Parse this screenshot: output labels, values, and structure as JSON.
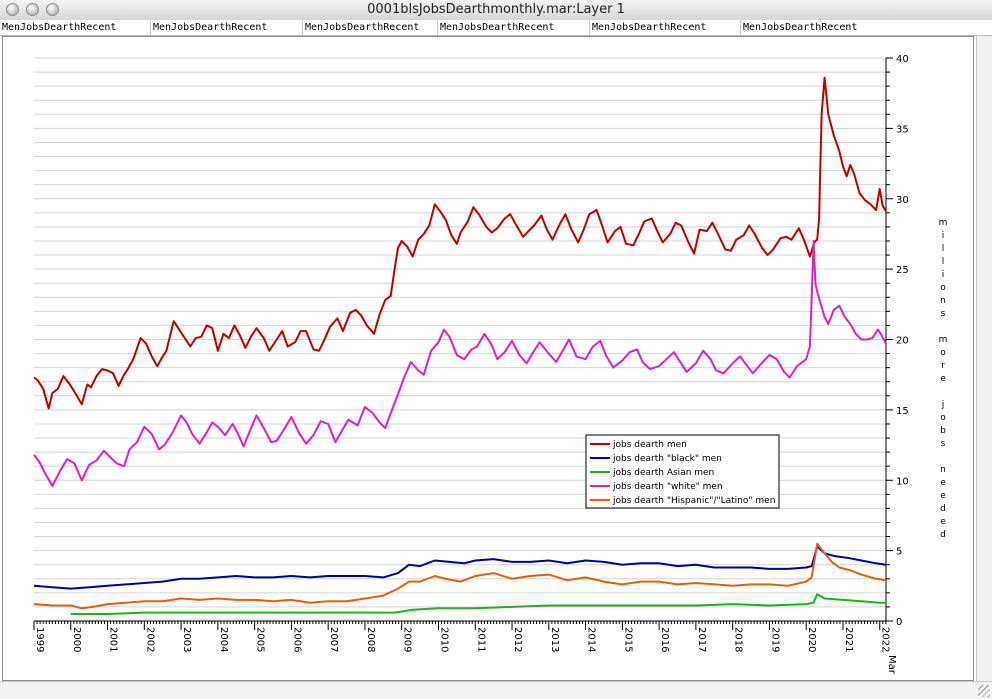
{
  "window": {
    "title": "0001blsJobsDearthmonthly.mar:Layer 1",
    "tabs": [
      "MenJobsDearthRecent",
      "MenJobsDearthRecent",
      "MenJobsDearthRecent",
      "MenJobsDearthRecent",
      "MenJobsDearthRecent",
      "MenJobsDearthRecent"
    ]
  },
  "chart_data": {
    "type": "line",
    "title": "",
    "ylabel": "millions more jobs needed",
    "xlabel": "",
    "ylim": [
      0,
      40
    ],
    "xlim": [
      1999.0,
      2022.17
    ],
    "yticks": [
      0,
      5,
      10,
      15,
      20,
      25,
      30,
      35,
      40
    ],
    "x_tick_labels": [
      "1999",
      "2000",
      "2001",
      "2002",
      "2003",
      "2004",
      "2005",
      "2006",
      "2007",
      "2008",
      "2009",
      "2010",
      "2011",
      "2012",
      "2013",
      "2014",
      "2015",
      "2016",
      "2017",
      "2018",
      "2019",
      "2020",
      "2021",
      "2022",
      "Mar"
    ],
    "grid": true,
    "legend_position": "lower-right",
    "series": [
      {
        "name": "jobs dearth men",
        "color": "#c00000",
        "x": [
          1999.0,
          1999.1,
          1999.25,
          1999.4,
          1999.5,
          1999.65,
          1999.8,
          1999.95,
          2000.1,
          2000.3,
          2000.45,
          2000.55,
          2000.7,
          2000.85,
          2001.0,
          2001.15,
          2001.3,
          2001.45,
          2001.55,
          2001.7,
          2001.9,
          2002.05,
          2002.2,
          2002.35,
          2002.5,
          2002.6,
          2002.8,
          2002.95,
          2003.05,
          2003.25,
          2003.4,
          2003.55,
          2003.7,
          2003.85,
          2004.0,
          2004.15,
          2004.3,
          2004.45,
          2004.6,
          2004.75,
          2004.9,
          2005.05,
          2005.25,
          2005.4,
          2005.6,
          2005.75,
          2005.9,
          2006.1,
          2006.25,
          2006.4,
          2006.6,
          2006.75,
          2006.9,
          2007.05,
          2007.25,
          2007.4,
          2007.6,
          2007.75,
          2007.9,
          2008.05,
          2008.25,
          2008.4,
          2008.55,
          2008.7,
          2008.8,
          2008.9,
          2009.0,
          2009.15,
          2009.3,
          2009.45,
          2009.6,
          2009.75,
          2009.9,
          2010.05,
          2010.2,
          2010.35,
          2010.5,
          2010.6,
          2010.8,
          2010.95,
          2011.1,
          2011.3,
          2011.45,
          2011.6,
          2011.8,
          2011.95,
          2012.1,
          2012.3,
          2012.45,
          2012.6,
          2012.8,
          2012.95,
          2013.1,
          2013.3,
          2013.45,
          2013.6,
          2013.8,
          2013.95,
          2014.1,
          2014.3,
          2014.45,
          2014.6,
          2014.8,
          2014.95,
          2015.1,
          2015.3,
          2015.45,
          2015.6,
          2015.8,
          2015.95,
          2016.1,
          2016.3,
          2016.45,
          2016.6,
          2016.8,
          2016.95,
          2017.1,
          2017.3,
          2017.45,
          2017.6,
          2017.8,
          2017.95,
          2018.1,
          2018.3,
          2018.45,
          2018.6,
          2018.8,
          2018.95,
          2019.1,
          2019.3,
          2019.45,
          2019.6,
          2019.8,
          2019.95,
          2020.1,
          2020.15,
          2020.2,
          2020.25,
          2020.3,
          2020.35,
          2020.42,
          2020.5,
          2020.6,
          2020.75,
          2020.9,
          2021.0,
          2021.1,
          2021.2,
          2021.3,
          2021.45,
          2021.6,
          2021.75,
          2021.9,
          2022.0,
          2022.08,
          2022.17
        ],
        "values": [
          17.3,
          17.1,
          16.5,
          15.1,
          16.2,
          16.5,
          17.4,
          16.9,
          16.3,
          15.4,
          16.8,
          16.6,
          17.4,
          17.9,
          17.8,
          17.6,
          16.7,
          17.5,
          17.9,
          18.6,
          20.1,
          19.7,
          18.8,
          18.1,
          18.8,
          19.2,
          21.3,
          20.7,
          20.3,
          19.5,
          20.1,
          20.2,
          21.0,
          20.8,
          19.2,
          20.4,
          20.1,
          21.0,
          20.3,
          19.4,
          20.2,
          20.8,
          20.1,
          19.2,
          20.0,
          20.6,
          19.5,
          19.8,
          20.6,
          20.6,
          19.3,
          19.2,
          20.0,
          20.9,
          21.5,
          20.6,
          21.9,
          22.1,
          21.7,
          21.0,
          20.4,
          21.8,
          22.8,
          23.1,
          24.9,
          26.5,
          27.0,
          26.6,
          25.9,
          27.1,
          27.5,
          28.1,
          29.6,
          29.1,
          28.5,
          27.4,
          26.8,
          27.6,
          28.4,
          29.4,
          28.9,
          28.0,
          27.6,
          27.9,
          28.6,
          28.9,
          28.2,
          27.3,
          27.7,
          28.1,
          28.8,
          27.8,
          27.1,
          28.2,
          28.9,
          27.9,
          26.9,
          27.8,
          28.9,
          29.2,
          28.1,
          26.9,
          27.7,
          28.0,
          26.8,
          26.7,
          27.5,
          28.4,
          28.6,
          27.7,
          26.9,
          27.5,
          28.3,
          28.1,
          26.9,
          26.1,
          27.8,
          27.7,
          28.3,
          27.5,
          26.4,
          26.3,
          27.1,
          27.4,
          28.1,
          27.5,
          26.5,
          26.0,
          26.4,
          27.2,
          27.3,
          27.1,
          27.9,
          27.0,
          25.9,
          26.3,
          26.8,
          27.0,
          27.1,
          28.6,
          36.0,
          38.6,
          36.0,
          34.5,
          33.4,
          32.3,
          31.6,
          32.4,
          31.8,
          30.4,
          29.9,
          29.6,
          29.2,
          30.7,
          29.5,
          29.1
        ]
      },
      {
        "name": "jobs dearth \"black\" men",
        "color": "#0000a0",
        "x": [
          1999.0,
          1999.5,
          2000.0,
          2000.5,
          2001.0,
          2001.5,
          2002.0,
          2002.5,
          2003.0,
          2003.5,
          2004.0,
          2004.5,
          2005.0,
          2005.5,
          2006.0,
          2006.5,
          2007.0,
          2007.5,
          2008.0,
          2008.5,
          2008.9,
          2009.2,
          2009.5,
          2009.9,
          2010.3,
          2010.7,
          2011.0,
          2011.5,
          2012.0,
          2012.5,
          2013.0,
          2013.5,
          2014.0,
          2014.5,
          2015.0,
          2015.5,
          2016.0,
          2016.5,
          2017.0,
          2017.5,
          2018.0,
          2018.5,
          2019.0,
          2019.5,
          2020.0,
          2020.15,
          2020.3,
          2020.5,
          2020.8,
          2021.1,
          2021.5,
          2021.9,
          2022.17
        ],
        "values": [
          2.5,
          2.4,
          2.3,
          2.4,
          2.5,
          2.6,
          2.7,
          2.8,
          3.0,
          3.0,
          3.1,
          3.2,
          3.1,
          3.1,
          3.2,
          3.1,
          3.2,
          3.2,
          3.2,
          3.1,
          3.4,
          4.0,
          3.9,
          4.3,
          4.2,
          4.1,
          4.3,
          4.4,
          4.2,
          4.2,
          4.3,
          4.1,
          4.3,
          4.2,
          4.0,
          4.1,
          4.1,
          3.9,
          4.0,
          3.8,
          3.8,
          3.8,
          3.7,
          3.7,
          3.8,
          3.9,
          5.3,
          4.8,
          4.6,
          4.5,
          4.3,
          4.1,
          4.0
        ]
      },
      {
        "name": "jobs dearth Asian men",
        "color": "#20b020",
        "x": [
          2000.0,
          2001.0,
          2002.0,
          2003.0,
          2004.0,
          2005.0,
          2006.0,
          2007.0,
          2008.0,
          2008.8,
          2009.3,
          2010.0,
          2011.0,
          2012.0,
          2013.0,
          2014.0,
          2015.0,
          2016.0,
          2017.0,
          2018.0,
          2019.0,
          2020.0,
          2020.2,
          2020.3,
          2020.5,
          2021.0,
          2021.5,
          2022.0,
          2022.17
        ],
        "values": [
          0.5,
          0.5,
          0.6,
          0.6,
          0.6,
          0.6,
          0.6,
          0.6,
          0.6,
          0.6,
          0.8,
          0.9,
          0.9,
          1.0,
          1.1,
          1.1,
          1.1,
          1.1,
          1.1,
          1.2,
          1.1,
          1.2,
          1.3,
          1.9,
          1.6,
          1.5,
          1.4,
          1.3,
          1.3
        ]
      },
      {
        "name": "jobs dearth \"white\" men",
        "color": "#e020c0",
        "x": [
          1999.0,
          1999.15,
          1999.3,
          1999.5,
          1999.7,
          1999.9,
          2000.1,
          2000.3,
          2000.5,
          2000.7,
          2000.9,
          2001.05,
          2001.25,
          2001.45,
          2001.6,
          2001.8,
          2002.0,
          2002.2,
          2002.4,
          2002.55,
          2002.75,
          2003.0,
          2003.15,
          2003.3,
          2003.5,
          2003.7,
          2003.85,
          2004.0,
          2004.2,
          2004.4,
          2004.55,
          2004.7,
          2004.9,
          2005.05,
          2005.25,
          2005.45,
          2005.6,
          2005.8,
          2006.0,
          2006.2,
          2006.4,
          2006.6,
          2006.8,
          2007.0,
          2007.2,
          2007.35,
          2007.55,
          2007.8,
          2008.0,
          2008.2,
          2008.4,
          2008.55,
          2008.75,
          2008.9,
          2009.05,
          2009.25,
          2009.45,
          2009.6,
          2009.8,
          2010.0,
          2010.15,
          2010.3,
          2010.5,
          2010.7,
          2010.9,
          2011.05,
          2011.25,
          2011.45,
          2011.6,
          2011.8,
          2012.0,
          2012.2,
          2012.4,
          2012.55,
          2012.75,
          2013.0,
          2013.2,
          2013.4,
          2013.55,
          2013.75,
          2014.0,
          2014.2,
          2014.4,
          2014.55,
          2014.75,
          2015.0,
          2015.2,
          2015.4,
          2015.55,
          2015.75,
          2016.0,
          2016.2,
          2016.4,
          2016.55,
          2016.75,
          2017.0,
          2017.2,
          2017.4,
          2017.55,
          2017.75,
          2018.0,
          2018.2,
          2018.4,
          2018.55,
          2018.75,
          2019.0,
          2019.2,
          2019.4,
          2019.55,
          2019.75,
          2020.0,
          2020.1,
          2020.15,
          2020.2,
          2020.25,
          2020.3,
          2020.4,
          2020.5,
          2020.6,
          2020.75,
          2020.9,
          2021.05,
          2021.2,
          2021.35,
          2021.5,
          2021.65,
          2021.8,
          2021.95,
          2022.05,
          2022.17
        ],
        "values": [
          11.8,
          11.3,
          10.5,
          9.6,
          10.6,
          11.5,
          11.2,
          10.0,
          11.1,
          11.4,
          12.1,
          11.7,
          11.2,
          11.0,
          12.2,
          12.7,
          13.8,
          13.3,
          12.2,
          12.5,
          13.3,
          14.6,
          14.1,
          13.3,
          12.6,
          13.4,
          14.1,
          13.8,
          13.2,
          14.0,
          13.3,
          12.4,
          13.7,
          14.6,
          13.7,
          12.7,
          12.8,
          13.6,
          14.5,
          13.4,
          12.6,
          13.2,
          14.2,
          14.0,
          12.7,
          13.4,
          14.3,
          13.9,
          15.2,
          14.8,
          14.1,
          13.7,
          15.1,
          16.1,
          17.2,
          18.4,
          17.8,
          17.5,
          19.2,
          19.8,
          20.7,
          20.2,
          18.9,
          18.6,
          19.3,
          19.5,
          20.4,
          19.6,
          18.6,
          19.1,
          19.9,
          18.9,
          18.3,
          19.0,
          19.8,
          19.0,
          18.4,
          19.3,
          20.0,
          18.8,
          18.6,
          19.5,
          19.9,
          18.9,
          18.0,
          18.5,
          19.1,
          19.3,
          18.4,
          17.9,
          18.1,
          18.6,
          19.1,
          18.5,
          17.7,
          18.3,
          19.2,
          18.6,
          17.8,
          17.6,
          18.3,
          18.8,
          18.1,
          17.6,
          18.2,
          18.9,
          18.6,
          17.7,
          17.3,
          18.1,
          18.6,
          19.5,
          23.0,
          27.0,
          24.0,
          23.4,
          22.5,
          21.6,
          21.1,
          22.1,
          22.4,
          21.6,
          21.1,
          20.4,
          20.0,
          20.0,
          20.1,
          20.7,
          20.3,
          19.7
        ]
      },
      {
        "name": "jobs dearth \"Hispanic\"/\"Latino\" men",
        "color": "#e06010",
        "x": [
          1999.0,
          1999.5,
          2000.0,
          2000.3,
          2000.6,
          2001.0,
          2001.5,
          2002.0,
          2002.5,
          2003.0,
          2003.5,
          2004.0,
          2004.5,
          2005.0,
          2005.5,
          2006.0,
          2006.5,
          2007.0,
          2007.5,
          2008.0,
          2008.5,
          2008.9,
          2009.2,
          2009.5,
          2009.9,
          2010.2,
          2010.6,
          2011.0,
          2011.5,
          2012.0,
          2012.5,
          2013.0,
          2013.5,
          2014.0,
          2014.5,
          2015.0,
          2015.5,
          2016.0,
          2016.5,
          2017.0,
          2017.5,
          2018.0,
          2018.5,
          2019.0,
          2019.5,
          2020.0,
          2020.15,
          2020.3,
          2020.5,
          2020.7,
          2020.9,
          2021.2,
          2021.5,
          2021.9,
          2022.17
        ],
        "values": [
          1.2,
          1.1,
          1.1,
          0.9,
          1.0,
          1.2,
          1.3,
          1.4,
          1.4,
          1.6,
          1.5,
          1.6,
          1.5,
          1.5,
          1.4,
          1.5,
          1.3,
          1.4,
          1.4,
          1.6,
          1.8,
          2.3,
          2.8,
          2.8,
          3.2,
          3.0,
          2.8,
          3.2,
          3.4,
          3.0,
          3.2,
          3.3,
          2.9,
          3.1,
          2.8,
          2.6,
          2.8,
          2.8,
          2.6,
          2.7,
          2.6,
          2.5,
          2.6,
          2.6,
          2.5,
          2.8,
          3.1,
          5.5,
          4.8,
          4.2,
          3.8,
          3.6,
          3.3,
          3.0,
          2.9
        ]
      }
    ]
  }
}
